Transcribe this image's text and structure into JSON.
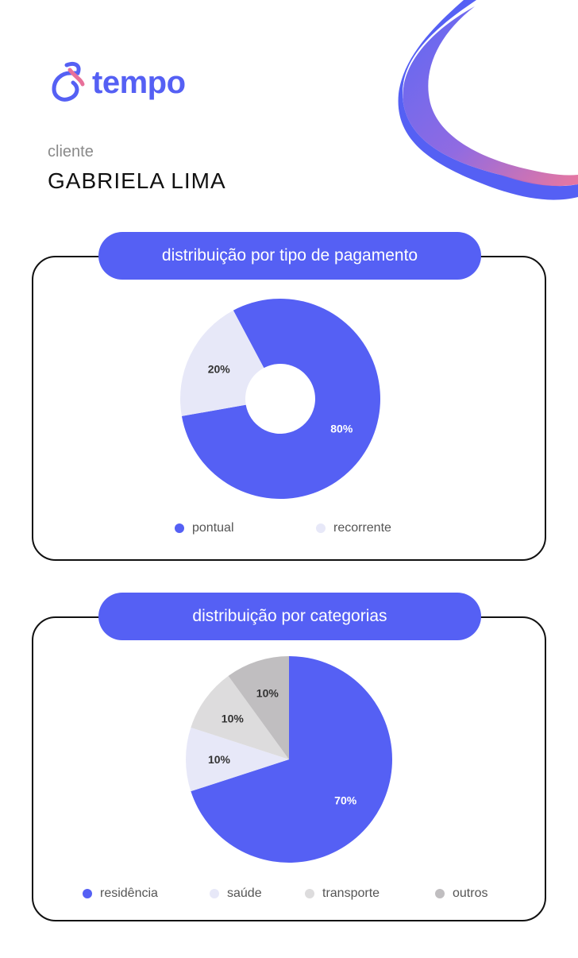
{
  "brand": {
    "name": "tempo"
  },
  "client": {
    "label": "cliente",
    "name": "GABRIELA LIMA"
  },
  "colors": {
    "primary": "#5560f4",
    "light": "#e7e8f8",
    "gray_light": "#dddcdd",
    "gray": "#c0bec0",
    "blob_pink": "#e8709a"
  },
  "chart_data": [
    {
      "type": "pie",
      "variant": "donut",
      "title": "distribuição por tipo de pagamento",
      "slices": [
        {
          "label": "pontual",
          "value": 80,
          "display": "80%",
          "color": "#5560f4"
        },
        {
          "label": "recorrente",
          "value": 20,
          "display": "20%",
          "color": "#e7e8f8"
        }
      ],
      "legend": [
        "pontual",
        "recorrente"
      ],
      "legend_position": "bottom"
    },
    {
      "type": "pie",
      "title": "distribuição por categorias",
      "slices": [
        {
          "label": "residência",
          "value": 70,
          "display": "70%",
          "color": "#5560f4"
        },
        {
          "label": "saúde",
          "value": 10,
          "display": "10%",
          "color": "#e7e8f8"
        },
        {
          "label": "transporte",
          "value": 10,
          "display": "10%",
          "color": "#dddcdd"
        },
        {
          "label": "outros",
          "value": 10,
          "display": "10%",
          "color": "#c0bec0"
        }
      ],
      "legend": [
        "residência",
        "saúde",
        "transporte",
        "outros"
      ],
      "legend_position": "bottom"
    }
  ]
}
